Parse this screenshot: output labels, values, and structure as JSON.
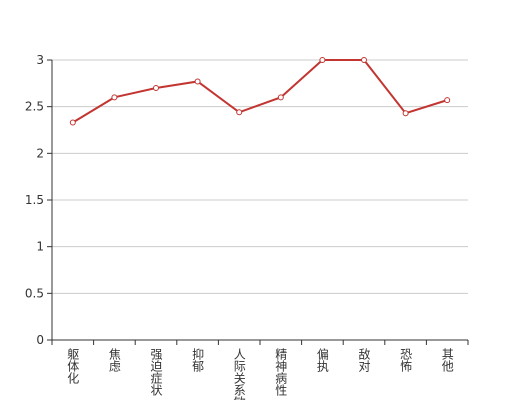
{
  "chart_data": {
    "type": "line",
    "categories": [
      "躯体化",
      "焦虑",
      "强迫症状",
      "抑郁",
      "人际关系敏感",
      "精神病性",
      "偏执",
      "敌对",
      "恐怖",
      "其他"
    ],
    "series": [
      {
        "color": "#c23531",
        "values": [
          2.33,
          2.6,
          2.7,
          2.77,
          2.44,
          2.6,
          3.0,
          3.0,
          2.43,
          2.57
        ]
      }
    ],
    "ylim": [
      0,
      3
    ],
    "yticks": [
      0,
      0.5,
      1,
      1.5,
      2,
      2.5,
      3
    ],
    "grid": true
  }
}
